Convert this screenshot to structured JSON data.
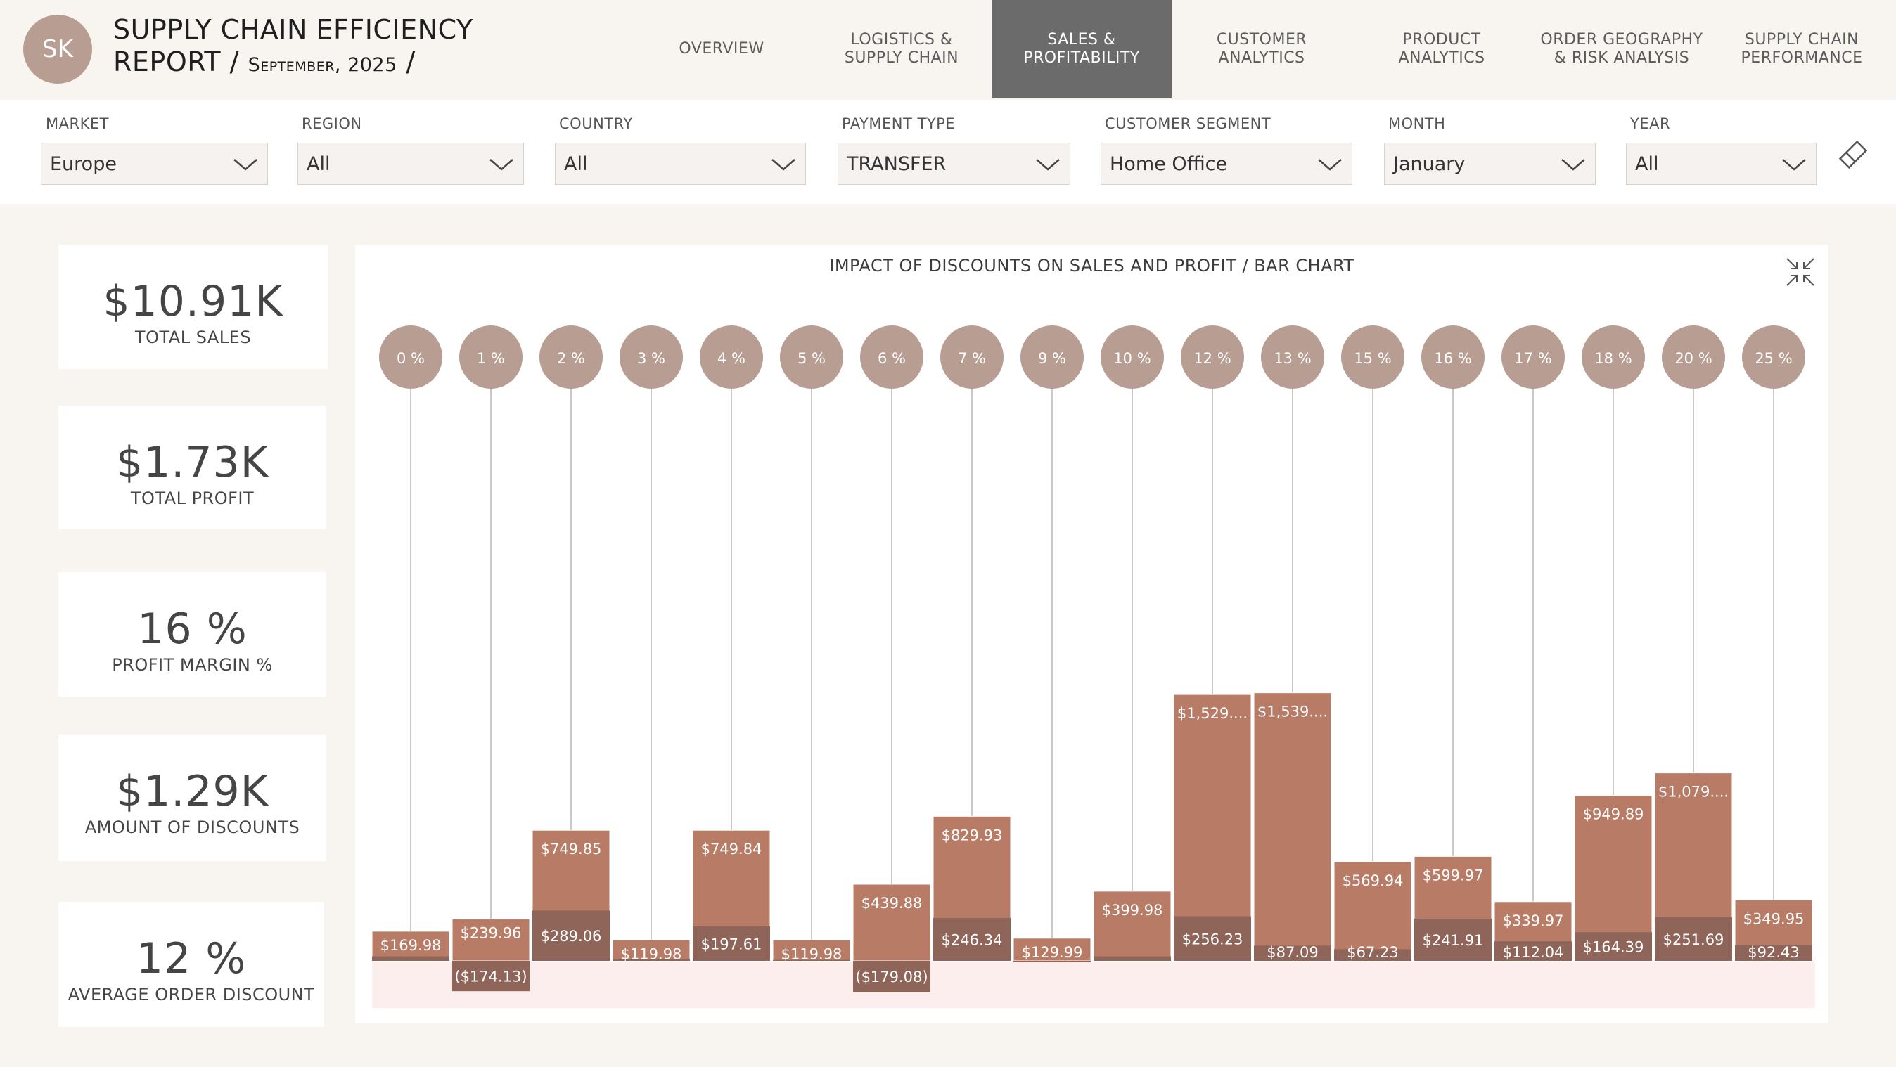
{
  "header": {
    "avatar_initials": "SK",
    "title_line1": "SUPPLY CHAIN EFFICIENCY",
    "title_line2": "REPORT / ",
    "title_date": "September, 2025",
    "title_sep": " /"
  },
  "nav": {
    "tabs": [
      {
        "line1": "OVERVIEW",
        "line2": ""
      },
      {
        "line1": "LOGISTICS &",
        "line2": "SUPPLY CHAIN"
      },
      {
        "line1": "SALES &",
        "line2": "PROFITABILITY"
      },
      {
        "line1": "CUSTOMER",
        "line2": "ANALYTICS"
      },
      {
        "line1": "PRODUCT",
        "line2": "ANALYTICS"
      },
      {
        "line1": "ORDER GEOGRAPHY",
        "line2": "& RISK ANALYSIS"
      },
      {
        "line1": "SUPPLY CHAIN",
        "line2": "PERFORMANCE"
      }
    ],
    "active_index": 2
  },
  "filters": [
    {
      "label": "MARKET",
      "value": "Europe"
    },
    {
      "label": "REGION",
      "value": "All"
    },
    {
      "label": "COUNTRY",
      "value": "All"
    },
    {
      "label": "PAYMENT TYPE",
      "value": "TRANSFER"
    },
    {
      "label": "CUSTOMER SEGMENT",
      "value": "Home Office"
    },
    {
      "label": "MONTH",
      "value": "January"
    },
    {
      "label": "YEAR",
      "value": "All"
    }
  ],
  "kpis": [
    {
      "value": "$10.91K",
      "label": "TOTAL SALES"
    },
    {
      "value": "$1.73K",
      "label": "TOTAL PROFIT"
    },
    {
      "value": "16 %",
      "label": "PROFIT MARGIN %"
    },
    {
      "value": "$1.29K",
      "label": "AMOUNT OF DISCOUNTS"
    },
    {
      "value": "12 %",
      "label": "AVERAGE ORDER DISCOUNT"
    }
  ],
  "colors": {
    "sales_bar": "#b87c66",
    "profit_bar": "#8e6558",
    "loss_band": "#fbeeec",
    "bubble": "#b89d92",
    "connector": "#c9c9c9",
    "active_tab": "#6b6b6b",
    "accent": "#b89d92"
  },
  "icons": {
    "dropdown": "chevron-down-icon",
    "clear_filters": "eraser-icon",
    "collapse": "collapse-icon"
  },
  "chart_data": {
    "type": "bar",
    "title": "IMPACT OF DISCOUNTS ON SALES AND PROFIT / BAR CHART",
    "categories": [
      "0 %",
      "1 %",
      "2 %",
      "3 %",
      "4 %",
      "5 %",
      "6 %",
      "7 %",
      "9 %",
      "10 %",
      "12 %",
      "13 %",
      "15 %",
      "16 %",
      "17 %",
      "18 %",
      "20 %",
      "25 %"
    ],
    "series": [
      {
        "values": [
          169.98,
          239.96,
          749.85,
          119.98,
          749.84,
          119.98,
          439.88,
          829.93,
          129.99,
          399.98,
          1529,
          1539,
          569.94,
          599.97,
          339.97,
          949.89,
          1079,
          349.95
        ],
        "labels": [
          "$169.98",
          "$239.96",
          "$749.85",
          "$119.98",
          "$749.84",
          "$119.98",
          "$439.88",
          "$829.93",
          "$129.99",
          "$399.98",
          "$1,529....",
          "$1,539....",
          "$569.94",
          "$599.97",
          "$339.97",
          "$949.89",
          "$1,079....",
          "$349.95"
        ]
      },
      {
        "values": [
          26,
          -174.13,
          289.06,
          8,
          197.61,
          5,
          -179.08,
          246.34,
          -8,
          26,
          256.23,
          87.09,
          67.23,
          241.91,
          112.04,
          164.39,
          251.69,
          92.43
        ],
        "labels": [
          "",
          "($174.13)",
          "$289.06",
          "",
          "$197.61",
          "",
          "($179.08)",
          "$246.34",
          "",
          "",
          "$256.23",
          "$87.09",
          "$67.23",
          "$241.91",
          "$112.04",
          "$164.39",
          "$251.69",
          "$92.43"
        ]
      }
    ],
    "legend": "none",
    "grid": false
  }
}
